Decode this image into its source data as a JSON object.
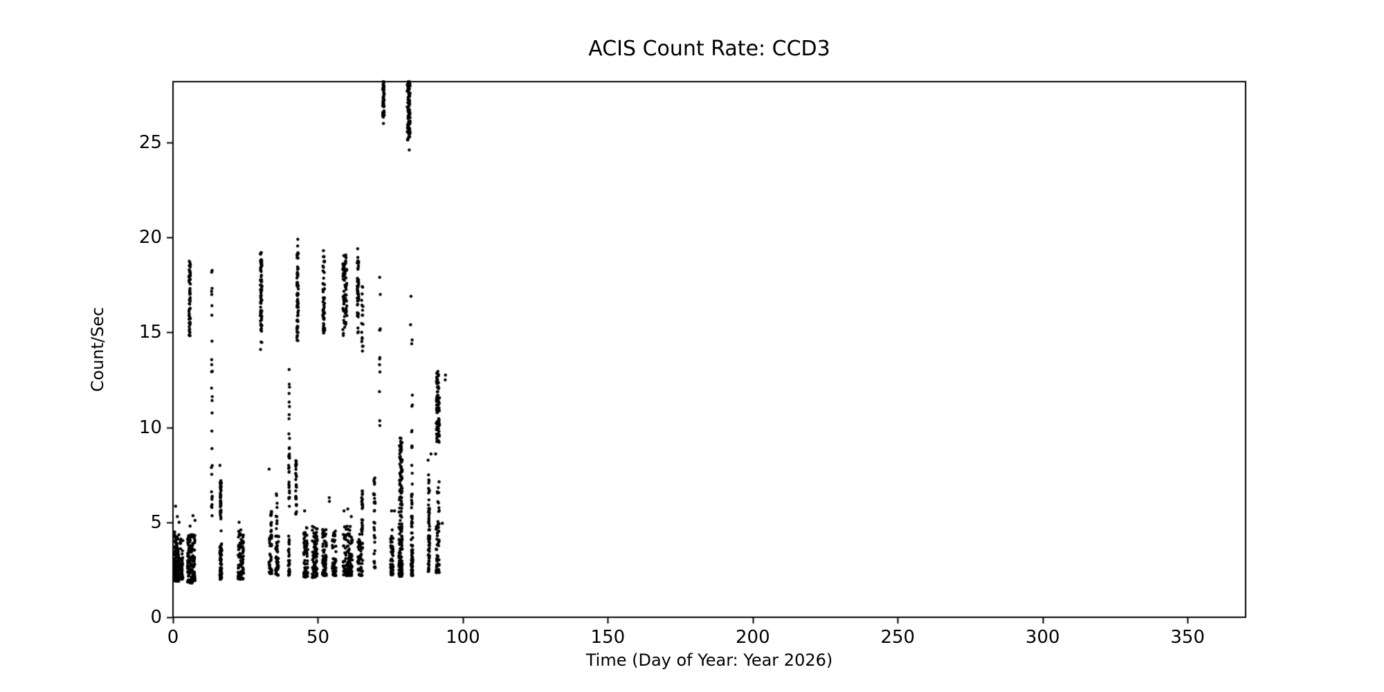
{
  "chart_data": {
    "type": "scatter",
    "title": "ACIS Count Rate: CCD3",
    "xlabel": "Time (Day of Year: Year 2026)",
    "ylabel": "Count/Sec",
    "xlim": [
      0,
      370
    ],
    "ylim": [
      0,
      28.2
    ],
    "xticks": [
      0,
      50,
      100,
      150,
      200,
      250,
      300,
      350
    ],
    "yticks": [
      0,
      5,
      10,
      15,
      20,
      25
    ],
    "grid": false,
    "legend": "none",
    "marker": {
      "shape": "dot",
      "color": "#000000",
      "radius_px": 2.2
    },
    "data_day_range": [
      0,
      95
    ],
    "note_empty_region": "no data points beyond day ~95",
    "cluster_fields": [
      "x_day",
      "x_spread_days",
      "y_min",
      "y_max",
      "n_points",
      "bottom_weighted"
    ],
    "clusters": [
      [
        1.2,
        1.7,
        1.9,
        4.5,
        130,
        1
      ],
      [
        2.9,
        1.0,
        2.0,
        4.2,
        55,
        1
      ],
      [
        6.3,
        2.6,
        1.8,
        4.4,
        130,
        1
      ],
      [
        5.75,
        0.5,
        14.75,
        18.75,
        55,
        0
      ],
      [
        13.4,
        0.3,
        5.3,
        12.1,
        17,
        0
      ],
      [
        13.45,
        0.25,
        12.8,
        14.6,
        5,
        0
      ],
      [
        13.4,
        0.25,
        15.8,
        18.35,
        7,
        0
      ],
      [
        16.5,
        0.7,
        2.0,
        4.0,
        55,
        1
      ],
      [
        16.45,
        0.4,
        5.1,
        7.2,
        40,
        0
      ],
      [
        23.4,
        1.9,
        2.0,
        4.6,
        85,
        1
      ],
      [
        30.4,
        0.55,
        14.35,
        19.2,
        70,
        0
      ],
      [
        33.6,
        1.0,
        2.3,
        4.4,
        45,
        1
      ],
      [
        33.9,
        0.4,
        4.5,
        5.6,
        12,
        0
      ],
      [
        35.9,
        1.1,
        2.2,
        4.3,
        45,
        1
      ],
      [
        35.7,
        0.45,
        4.5,
        6.5,
        10,
        0
      ],
      [
        40.0,
        0.5,
        2.2,
        4.4,
        30,
        1
      ],
      [
        40.05,
        0.35,
        5.3,
        9.7,
        26,
        0
      ],
      [
        40.1,
        0.3,
        10.4,
        13.9,
        8,
        0
      ],
      [
        42.45,
        0.35,
        5.4,
        9.2,
        30,
        0
      ],
      [
        43.0,
        0.55,
        14.5,
        19.3,
        65,
        0
      ],
      [
        45.8,
        1.4,
        2.1,
        4.8,
        60,
        1
      ],
      [
        48.9,
        1.7,
        2.1,
        4.8,
        80,
        1
      ],
      [
        52.0,
        0.6,
        14.9,
        19.1,
        55,
        0
      ],
      [
        52.3,
        1.4,
        2.2,
        4.7,
        70,
        1
      ],
      [
        55.6,
        1.3,
        2.2,
        4.6,
        50,
        1
      ],
      [
        59.3,
        1.4,
        14.8,
        19.2,
        75,
        0
      ],
      [
        60.3,
        3.2,
        2.2,
        4.9,
        120,
        1
      ],
      [
        63.8,
        0.55,
        14.9,
        19.0,
        45,
        0
      ],
      [
        65.3,
        0.5,
        14.0,
        17.5,
        18,
        0
      ],
      [
        64.6,
        1.7,
        2.2,
        4.5,
        60,
        1
      ],
      [
        65.25,
        0.35,
        4.5,
        6.7,
        28,
        0
      ],
      [
        69.5,
        0.55,
        4.5,
        7.35,
        20,
        0
      ],
      [
        69.6,
        0.55,
        2.6,
        4.5,
        14,
        1
      ],
      [
        71.3,
        0.2,
        9.4,
        13.8,
        7,
        0
      ],
      [
        71.4,
        0.3,
        15.05,
        15.45,
        3,
        0
      ],
      [
        72.6,
        0.55,
        26.3,
        28.2,
        55,
        0
      ],
      [
        75.5,
        0.9,
        2.2,
        4.6,
        48,
        1
      ],
      [
        78.5,
        1.2,
        2.15,
        6.3,
        110,
        1
      ],
      [
        78.6,
        1.0,
        6.3,
        9.45,
        55,
        0
      ],
      [
        81.3,
        1.0,
        25.1,
        28.2,
        100,
        0
      ],
      [
        82.45,
        0.55,
        2.2,
        4.5,
        50,
        1
      ],
      [
        82.4,
        0.35,
        4.5,
        6.6,
        18,
        0
      ],
      [
        82.45,
        0.3,
        7.0,
        12.0,
        11,
        0
      ],
      [
        88.3,
        0.55,
        2.4,
        4.7,
        40,
        1
      ],
      [
        88.3,
        0.4,
        4.7,
        7.35,
        22,
        0
      ],
      [
        91.4,
        1.2,
        9.05,
        13.0,
        90,
        0
      ],
      [
        91.3,
        1.1,
        2.35,
        5.05,
        55,
        1
      ],
      [
        91.5,
        0.7,
        5.5,
        7.2,
        10,
        0
      ]
    ],
    "single_points": [
      [
        0.9,
        5.85
      ],
      [
        1.5,
        5.3
      ],
      [
        2.1,
        5.0
      ],
      [
        5.9,
        4.8
      ],
      [
        6.9,
        5.35
      ],
      [
        7.6,
        5.1
      ],
      [
        16.2,
        8.0
      ],
      [
        16.6,
        4.55
      ],
      [
        22.8,
        5.0
      ],
      [
        30.2,
        14.1
      ],
      [
        33.15,
        7.8
      ],
      [
        43.05,
        19.9
      ],
      [
        43.0,
        19.55
      ],
      [
        45.4,
        5.6
      ],
      [
        51.9,
        19.3
      ],
      [
        53.9,
        6.3
      ],
      [
        53.95,
        6.1
      ],
      [
        60.3,
        5.7
      ],
      [
        59.0,
        5.6
      ],
      [
        61.5,
        5.3
      ],
      [
        63.7,
        19.4
      ],
      [
        71.5,
        17.0
      ],
      [
        71.3,
        17.9
      ],
      [
        72.6,
        26.0
      ],
      [
        75.4,
        5.6
      ],
      [
        76.4,
        5.6
      ],
      [
        81.5,
        24.6
      ],
      [
        82.1,
        16.9
      ],
      [
        81.95,
        15.4
      ],
      [
        82.35,
        14.4
      ],
      [
        82.5,
        14.6
      ],
      [
        88.0,
        8.27
      ],
      [
        89.0,
        8.6
      ],
      [
        88.15,
        7.5
      ],
      [
        90.6,
        8.6
      ],
      [
        93.9,
        12.5
      ],
      [
        94.0,
        12.75
      ],
      [
        92.9,
        4.95
      ]
    ],
    "colors": {
      "background": "#ffffff",
      "axes": "#000000",
      "points": "#000000",
      "text": "#000000"
    }
  }
}
